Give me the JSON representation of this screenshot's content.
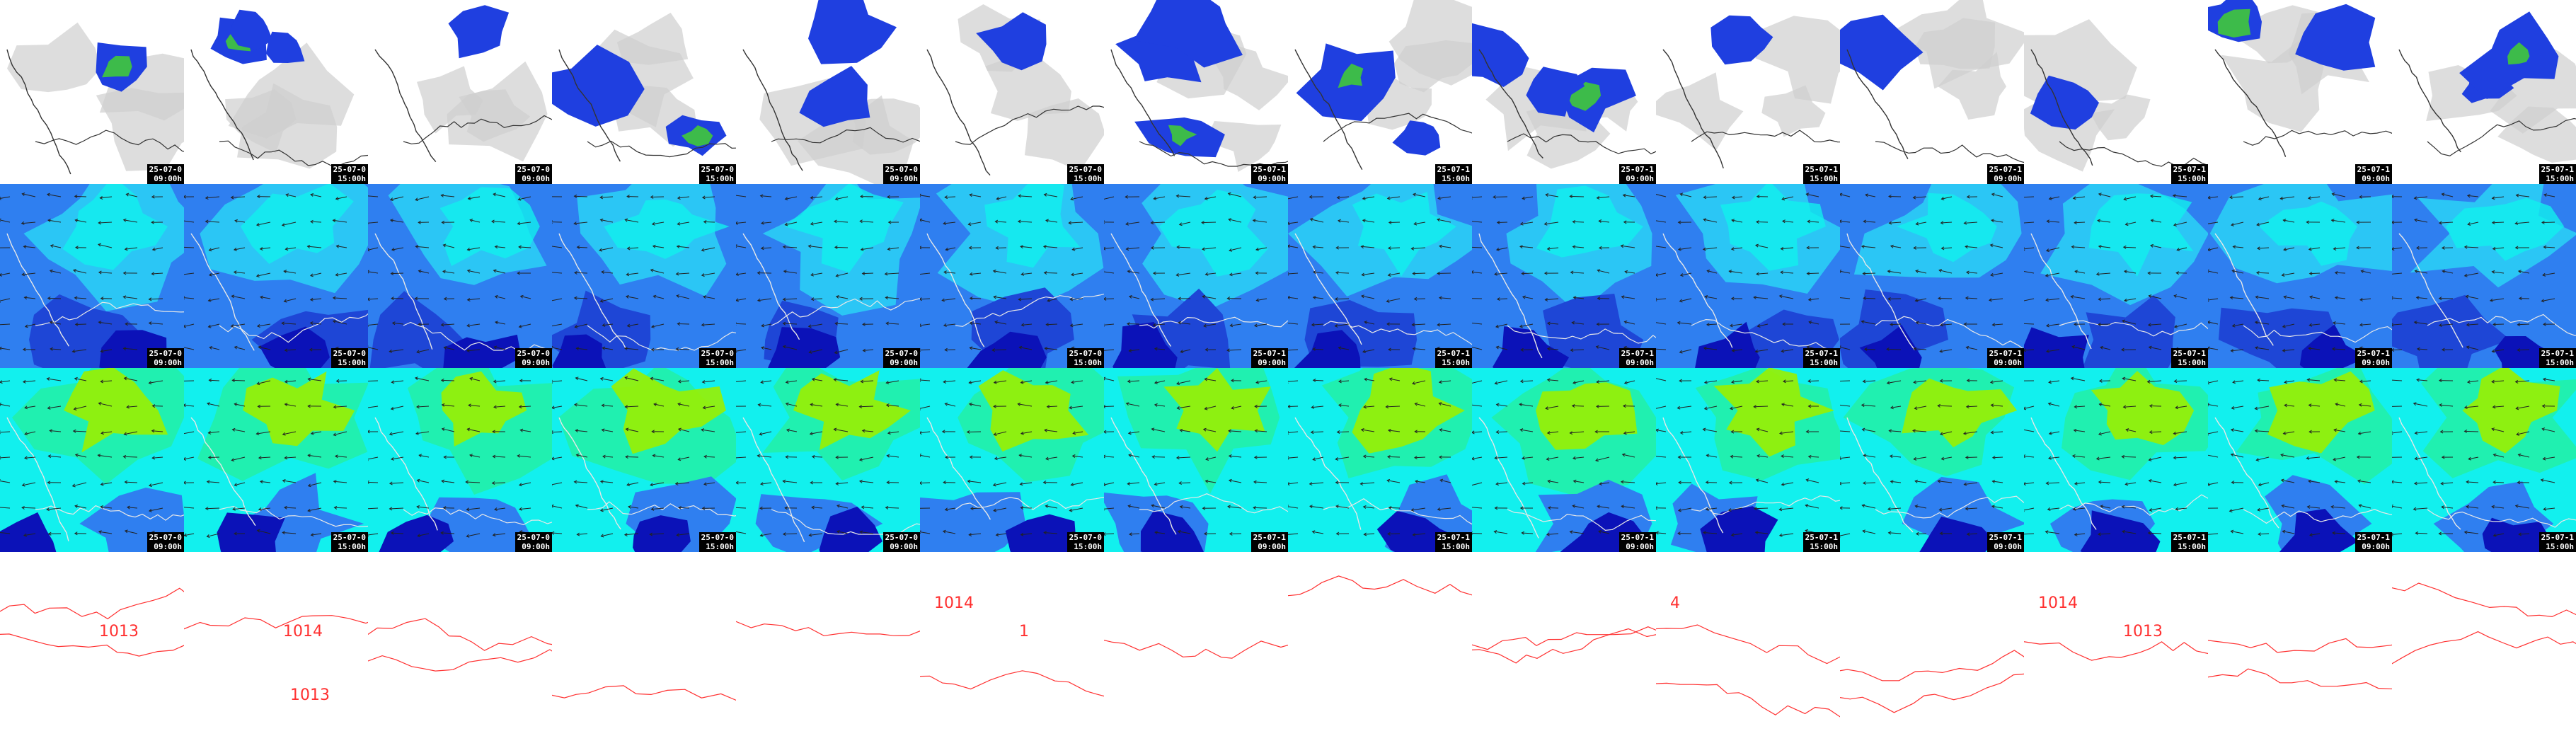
{
  "panel_rows": [
    {
      "id": "precipitation",
      "colors": [
        "#ffffff",
        "#cfcfcf",
        "#1f3fe0",
        "#2a6ae8",
        "#3dbb4a"
      ]
    },
    {
      "id": "low-level-humidity",
      "colors": [
        "#0b12b8",
        "#1e46d6",
        "#2f7ff0",
        "#2bc6f5",
        "#12f0ee"
      ]
    },
    {
      "id": "mid-level-humidity",
      "colors": [
        "#0b12b8",
        "#2f7ff0",
        "#12f0ee",
        "#20f0b0",
        "#9af000"
      ]
    },
    {
      "id": "pressure-contours",
      "colors": [
        "#ffffff",
        "#ff3030"
      ]
    }
  ],
  "timestamps": [
    {
      "date": "25-07-0",
      "time": "09:00h"
    },
    {
      "date": "25-07-0",
      "time": "15:00h"
    },
    {
      "date": "25-07-0",
      "time": "09:00h"
    },
    {
      "date": "25-07-0",
      "time": "15:00h"
    },
    {
      "date": "25-07-0",
      "time": "09:00h"
    },
    {
      "date": "25-07-0",
      "time": "15:00h"
    },
    {
      "date": "25-07-1",
      "time": "09:00h"
    },
    {
      "date": "25-07-1",
      "time": "15:00h"
    },
    {
      "date": "25-07-1",
      "time": "09:00h"
    },
    {
      "date": "25-07-1",
      "time": "15:00h"
    },
    {
      "date": "25-07-1",
      "time": "09:00h"
    },
    {
      "date": "25-07-1",
      "time": "15:00h"
    },
    {
      "date": "25-07-1",
      "time": "09:00h"
    },
    {
      "date": "25-07-1",
      "time": "15:00h"
    }
  ],
  "isobar_labels": [
    {
      "col": 1,
      "text": "1013"
    },
    {
      "col": 3,
      "text": "1014"
    },
    {
      "col": 3,
      "text": "1013"
    },
    {
      "col": 10,
      "text": "1014"
    },
    {
      "col": 11,
      "text": "1"
    },
    {
      "col": 18,
      "text": "4"
    },
    {
      "col": 22,
      "text": "1014"
    },
    {
      "col": 23,
      "text": "1013"
    }
  ]
}
